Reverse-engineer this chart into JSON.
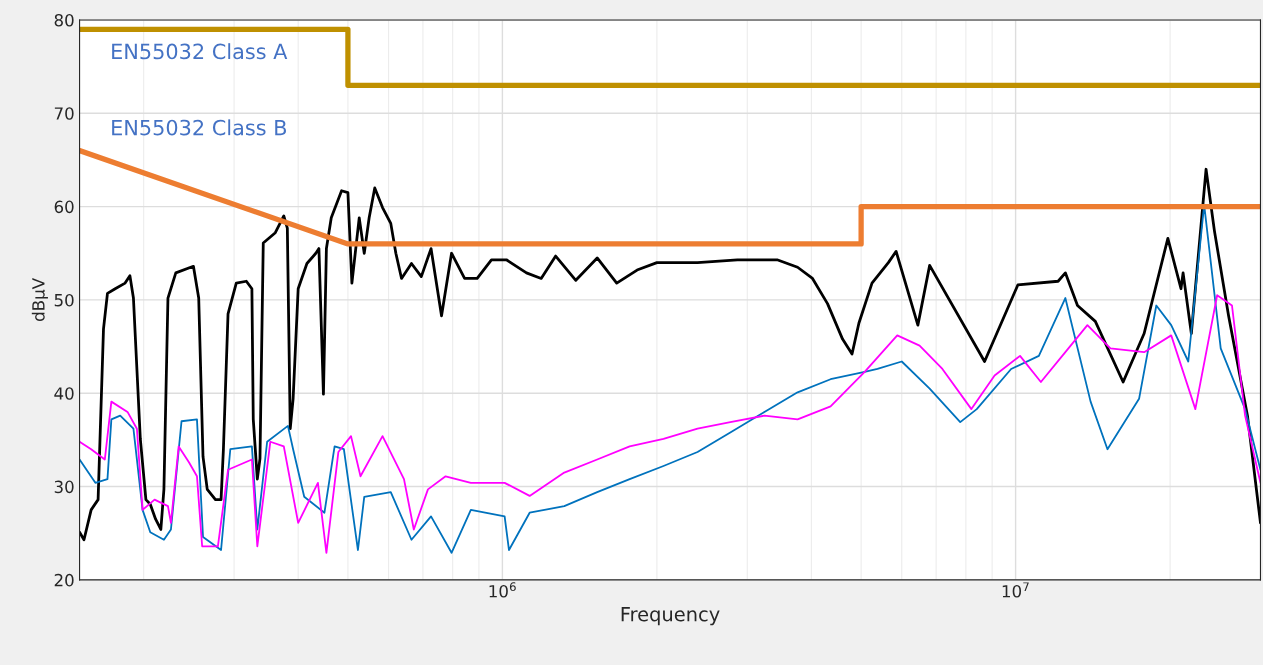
{
  "chart_data": {
    "type": "line",
    "xlabel": "Frequency",
    "ylabel": "dBµV",
    "log": "x",
    "grid": true,
    "legend": false,
    "marker": "none",
    "line_style": "solid",
    "xlim": [
      150000,
      30000000
    ],
    "xticks": [
      {
        "value": 1000000,
        "label": "10$^{6}$"
      },
      {
        "value": 10000000,
        "label": "10$^{7}$"
      }
    ],
    "ylim": [
      20,
      80
    ],
    "yticks": [
      20,
      30,
      40,
      50,
      60,
      70,
      80
    ],
    "series": [
      {
        "color": "#000000",
        "x": [
          150000,
          153000,
          158000,
          163000,
          167000,
          170000,
          176000,
          184000,
          188000,
          191000,
          197000,
          202000,
          206000,
          211000,
          216000,
          219000,
          223000,
          231000,
          250000,
          256000,
          261000,
          266000,
          276000,
          283000,
          286000,
          292000,
          303000,
          317000,
          325000,
          327000,
          333000,
          337000,
          342000,
          361000,
          375000,
          381000,
          386000,
          391000,
          400000,
          416000,
          433000,
          439000,
          448000,
          454000,
          464000,
          486000,
          500000,
          509000,
          526000,
          538000,
          550000,
          564000,
          584000,
          606000,
          620000,
          636000,
          665000,
          695000,
          726000,
          761000,
          796000,
          844000,
          893000,
          952000,
          1018000,
          1114000,
          1190000,
          1270000,
          1390000,
          1530000,
          1670000,
          1830000,
          2000000,
          2400000,
          2870000,
          3430000,
          3760000,
          4020000,
          4300000,
          4600000,
          4800000,
          4950000,
          5250000,
          5650000,
          5850000,
          6450000,
          6800000,
          8700000,
          10100000,
          12100000,
          12500000,
          13200000,
          14300000,
          16200000,
          17800000,
          19800000,
          21000000,
          21200000,
          22000000,
          23500000,
          24400000,
          26000000,
          28300000,
          30000000
        ],
        "values": [
          25.1,
          24.3,
          27.5,
          28.6,
          46.9,
          50.7,
          51.2,
          51.8,
          52.6,
          50.2,
          35.1,
          28.6,
          28.1,
          26.5,
          25.4,
          29.7,
          50.2,
          52.9,
          53.6,
          50.2,
          33.2,
          29.7,
          28.6,
          28.6,
          34.0,
          48.5,
          51.8,
          52.0,
          51.2,
          37.2,
          30.8,
          33.0,
          56.1,
          57.2,
          59.0,
          57.7,
          36.2,
          39.4,
          51.2,
          53.9,
          55.0,
          55.5,
          39.9,
          55.5,
          58.8,
          61.7,
          61.5,
          51.8,
          58.8,
          55.0,
          58.8,
          62.0,
          59.9,
          58.2,
          55.0,
          52.3,
          53.9,
          52.5,
          55.5,
          48.3,
          55.0,
          52.3,
          52.3,
          54.3,
          54.3,
          52.9,
          52.3,
          54.7,
          52.1,
          54.5,
          51.8,
          53.2,
          54.0,
          54.0,
          54.3,
          54.3,
          53.5,
          52.3,
          49.6,
          45.8,
          44.2,
          47.5,
          51.8,
          54.0,
          55.2,
          47.3,
          53.7,
          43.4,
          51.6,
          52.0,
          52.9,
          49.4,
          47.7,
          41.2,
          46.4,
          56.6,
          51.2,
          52.9,
          46.4,
          64.0,
          57.4,
          48.3,
          37.6,
          26.1
        ]
      },
      {
        "color": "#0072bd",
        "x": [
          150000,
          161000,
          170000,
          173000,
          180000,
          191000,
          199000,
          206000,
          219000,
          226000,
          237000,
          254000,
          261000,
          283000,
          295000,
          325000,
          333000,
          348000,
          382000,
          391000,
          411000,
          450000,
          471000,
          491000,
          523000,
          538000,
          606000,
          665000,
          726000,
          796000,
          868000,
          1010000,
          1030000,
          1130000,
          1320000,
          1530000,
          1770000,
          2060000,
          2400000,
          2780000,
          3240000,
          3760000,
          4360000,
          5080000,
          5380000,
          6000000,
          6800000,
          7800000,
          8400000,
          9800000,
          11100000,
          12500000,
          14000000,
          15100000,
          17400000,
          18800000,
          20100000,
          21700000,
          23300000,
          25100000,
          28000000,
          30000000
        ],
        "values": [
          32.9,
          30.4,
          30.8,
          37.2,
          37.6,
          36.2,
          27.5,
          25.1,
          24.3,
          25.4,
          37.0,
          37.2,
          24.6,
          23.2,
          34.0,
          34.3,
          25.4,
          34.8,
          36.5,
          34.0,
          28.9,
          27.2,
          34.3,
          34.0,
          23.2,
          28.9,
          29.4,
          24.3,
          26.8,
          22.9,
          27.5,
          26.8,
          23.2,
          27.2,
          27.9,
          29.4,
          30.8,
          32.2,
          33.7,
          35.8,
          38.0,
          40.1,
          41.5,
          42.3,
          42.6,
          43.4,
          40.5,
          36.9,
          38.3,
          42.6,
          44.0,
          50.2,
          39.1,
          34.0,
          39.4,
          49.4,
          47.3,
          43.4,
          60.2,
          44.8,
          38.3,
          31.8
        ]
      },
      {
        "color": "#ff00ff",
        "x": [
          150000,
          158000,
          168000,
          173000,
          186000,
          194000,
          199000,
          210000,
          223000,
          226000,
          234000,
          245000,
          254000,
          260000,
          279000,
          292000,
          325000,
          333000,
          353000,
          375000,
          400000,
          437000,
          454000,
          479000,
          507000,
          529000,
          584000,
          643000,
          672000,
          716000,
          775000,
          868000,
          1010000,
          1130000,
          1320000,
          1530000,
          1770000,
          2060000,
          2400000,
          2780000,
          3240000,
          3760000,
          4360000,
          5080000,
          5880000,
          6500000,
          7200000,
          8200000,
          9100000,
          10200000,
          11200000,
          12500000,
          13800000,
          15300000,
          17800000,
          20100000,
          22400000,
          24700000,
          26400000,
          28000000,
          30000000
        ],
        "values": [
          34.8,
          34.0,
          32.9,
          39.1,
          38.0,
          36.2,
          27.5,
          28.6,
          27.9,
          26.1,
          34.3,
          32.6,
          31.1,
          23.6,
          23.6,
          31.8,
          32.9,
          23.6,
          34.8,
          34.3,
          26.1,
          30.4,
          22.9,
          33.7,
          35.4,
          31.1,
          35.4,
          30.8,
          25.4,
          29.7,
          31.1,
          30.4,
          30.4,
          29.0,
          31.5,
          32.9,
          34.3,
          35.1,
          36.2,
          36.9,
          37.6,
          37.2,
          38.6,
          42.3,
          46.2,
          45.1,
          42.6,
          38.3,
          41.9,
          44.0,
          41.2,
          44.4,
          47.3,
          44.8,
          44.4,
          46.2,
          38.3,
          50.5,
          49.4,
          37.6,
          30.4
        ]
      },
      {
        "name": "EN55032 Class A",
        "color": "#bf9000",
        "x": [
          150000,
          500000,
          500000,
          30000000
        ],
        "values": [
          79,
          79,
          73,
          73
        ]
      },
      {
        "name": "EN55032 Class B",
        "color": "#ed7d31",
        "x": [
          150000,
          500000,
          5000000,
          5000000,
          30000000
        ],
        "values": [
          66,
          56,
          56,
          60,
          60
        ]
      }
    ]
  }
}
